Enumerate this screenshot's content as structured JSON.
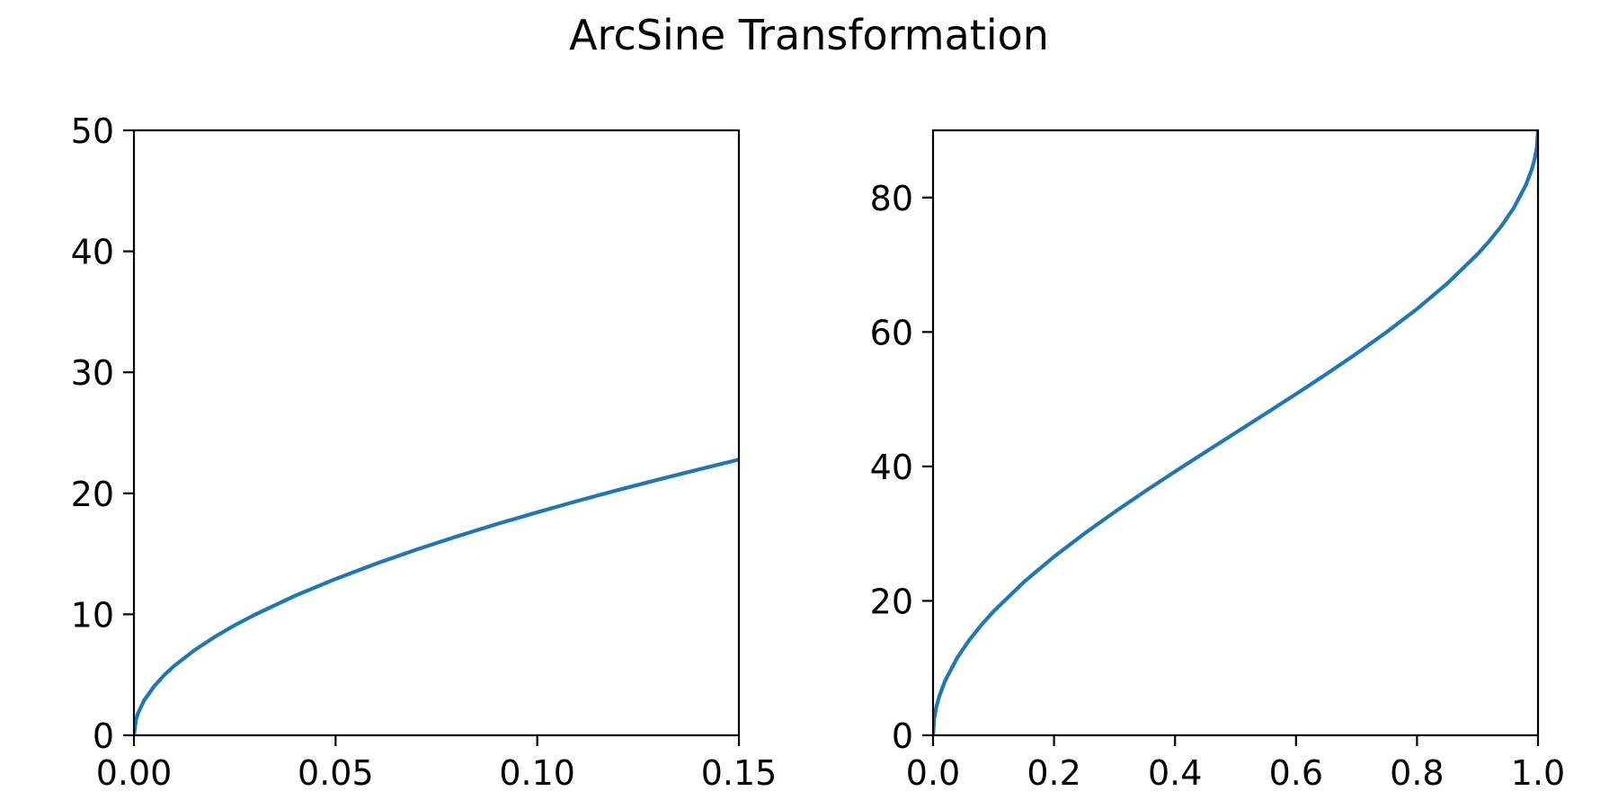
{
  "figure": {
    "title": "ArcSine Transformation"
  },
  "chart_data": [
    {
      "type": "line",
      "title": "",
      "xlabel": "",
      "ylabel": "",
      "xlim": [
        0.0,
        0.15
      ],
      "ylim": [
        0,
        50
      ],
      "x_ticks": [
        0.0,
        0.05,
        0.1,
        0.15
      ],
      "x_tick_labels": [
        "0.00",
        "0.05",
        "0.10",
        "0.15"
      ],
      "y_ticks": [
        0,
        10,
        20,
        30,
        40,
        50
      ],
      "y_tick_labels": [
        "0",
        "10",
        "20",
        "30",
        "40",
        "50"
      ],
      "grid": false,
      "series": [
        {
          "color": "#1f77b4",
          "x": [
            0.0,
            0.0005,
            0.001,
            0.0025,
            0.005,
            0.0075,
            0.01,
            0.015,
            0.02,
            0.025,
            0.03,
            0.04,
            0.05,
            0.06,
            0.07,
            0.08,
            0.09,
            0.1,
            0.11,
            0.12,
            0.13,
            0.14,
            0.15
          ],
          "y": [
            0.0,
            1.28,
            1.81,
            2.87,
            4.05,
            4.97,
            5.74,
            7.03,
            8.13,
            9.1,
            9.97,
            11.54,
            12.92,
            14.18,
            15.34,
            16.43,
            17.46,
            18.43,
            19.37,
            20.27,
            21.13,
            21.97,
            22.79
          ]
        }
      ]
    },
    {
      "type": "line",
      "title": "",
      "xlabel": "",
      "ylabel": "",
      "xlim": [
        0.0,
        1.0
      ],
      "ylim": [
        0,
        90
      ],
      "x_ticks": [
        0.0,
        0.2,
        0.4,
        0.6,
        0.8,
        1.0
      ],
      "x_tick_labels": [
        "0.0",
        "0.2",
        "0.4",
        "0.6",
        "0.8",
        "1.0"
      ],
      "y_ticks": [
        0,
        20,
        40,
        60,
        80
      ],
      "y_tick_labels": [
        "0",
        "20",
        "40",
        "60",
        "80"
      ],
      "grid": false,
      "series": [
        {
          "color": "#1f77b4",
          "x": [
            0.0,
            0.002,
            0.005,
            0.01,
            0.02,
            0.04,
            0.06,
            0.08,
            0.1,
            0.15,
            0.2,
            0.25,
            0.3,
            0.35,
            0.4,
            0.45,
            0.5,
            0.55,
            0.6,
            0.65,
            0.7,
            0.75,
            0.8,
            0.85,
            0.9,
            0.92,
            0.94,
            0.96,
            0.98,
            0.99,
            0.995,
            0.998,
            1.0
          ],
          "y": [
            0.0,
            2.56,
            4.05,
            5.74,
            8.13,
            11.54,
            14.18,
            16.43,
            18.43,
            22.79,
            26.57,
            30.0,
            33.21,
            36.27,
            39.23,
            42.13,
            45.0,
            47.87,
            50.77,
            53.73,
            56.79,
            60.0,
            63.43,
            67.21,
            71.57,
            73.57,
            75.82,
            78.46,
            81.87,
            84.26,
            85.95,
            87.44,
            90.0
          ]
        }
      ]
    }
  ]
}
